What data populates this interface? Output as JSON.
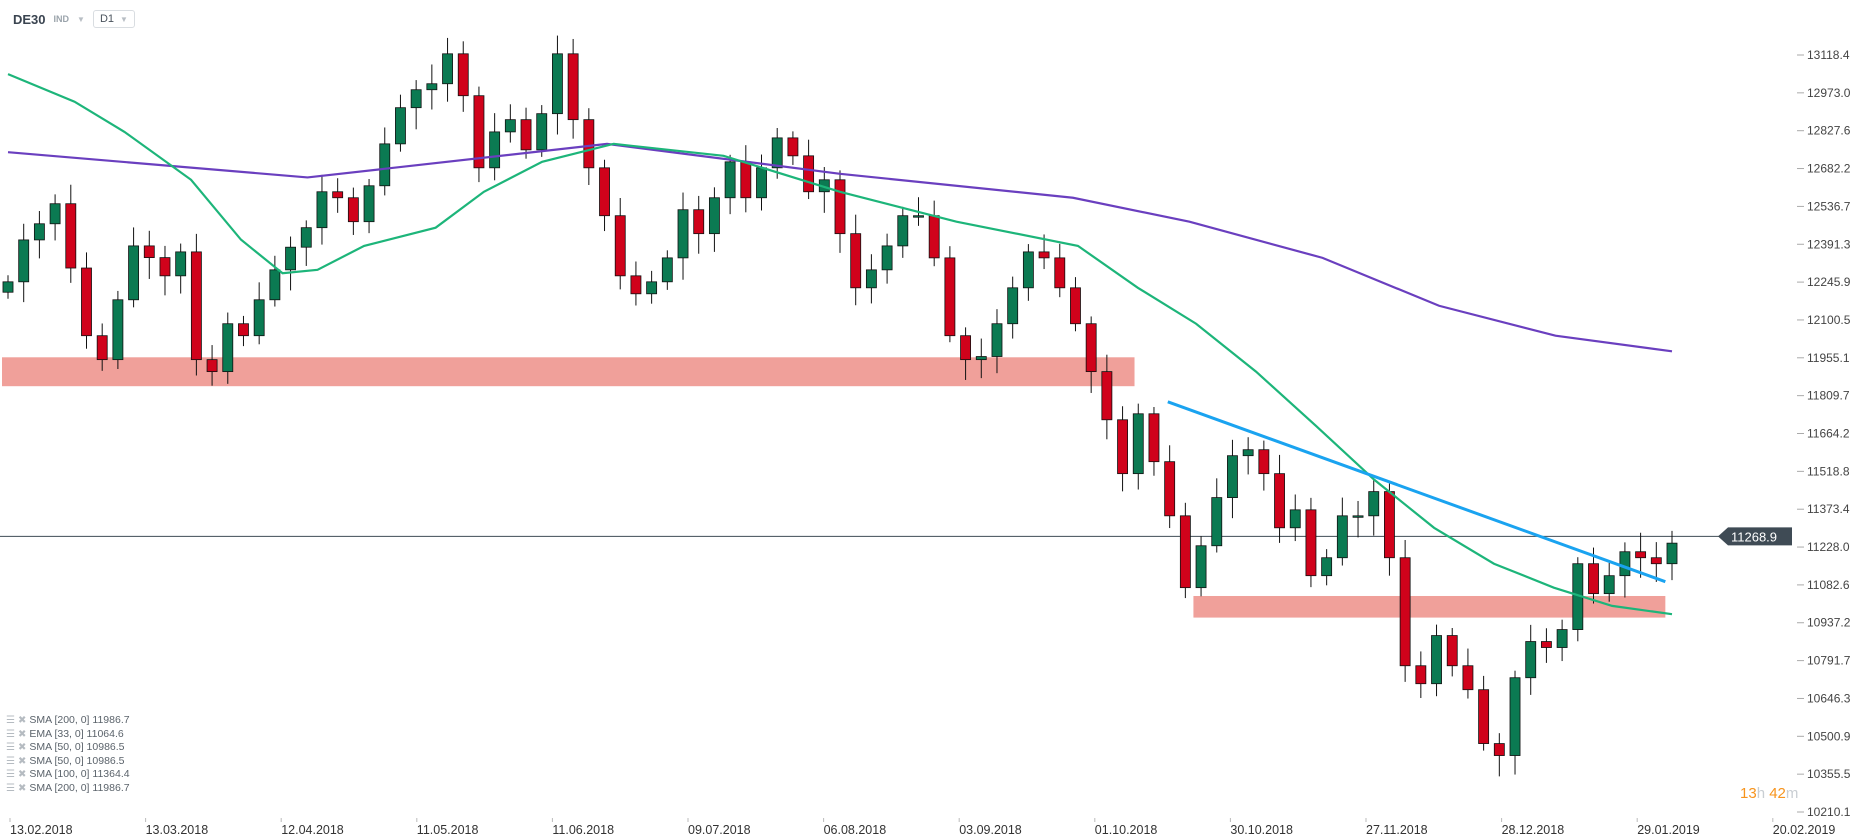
{
  "header": {
    "symbol": "DE30",
    "class": "IND",
    "timeframe": "D1"
  },
  "timer": {
    "hours": "13",
    "h": "h",
    "minutes": "42",
    "m": "m"
  },
  "legend": [
    {
      "label": "SMA [200,  0] 11986.7"
    },
    {
      "label": "EMA [33, 0] 11064.6"
    },
    {
      "label": "SMA [50, 0] 10986.5"
    },
    {
      "label": "SMA [50, 0] 10986.5"
    },
    {
      "label": "SMA [100,  0] 11364.4"
    },
    {
      "label": "SMA [200,  0] 11986.7"
    }
  ],
  "colors": {
    "up": "#0b7a52",
    "down": "#d0021b",
    "sma200": "#6a3fbf",
    "sma50": "#1db57a",
    "trend": "#1aa3f0",
    "zone": "#f0a09a",
    "last": "#3f4b55"
  },
  "chart_data": {
    "type": "candlestick",
    "title": "DE30",
    "ylim": [
      10210.1,
      13118.4
    ],
    "y_ticks": [
      "13118.4",
      "12973.0",
      "12827.6",
      "12682.2",
      "12536.7",
      "12391.3",
      "12245.9",
      "12100.5",
      "11955.1",
      "11809.7",
      "11664.2",
      "11518.8",
      "11373.4",
      "11228.0",
      "11082.6",
      "10937.2",
      "10791.7",
      "10646.3",
      "10500.9",
      "10355.5",
      "10210.1"
    ],
    "x_ticks": [
      "13.02.2018",
      "13.03.2018",
      "12.04.2018",
      "11.05.2018",
      "11.06.2018",
      "09.07.2018",
      "06.08.2018",
      "03.09.2018",
      "01.10.2018",
      "30.10.2018",
      "27.11.2018",
      "28.12.2018",
      "29.01.2019",
      "20.02.2019"
    ],
    "last_price": "11268.9",
    "closes": [
      12247,
      12408,
      12470,
      12547,
      12300,
      12040,
      11948,
      12178,
      12385,
      12340,
      12270,
      12362,
      11948,
      11902,
      12086,
      12040,
      12178,
      12293,
      12380,
      12455,
      12593,
      12570,
      12478,
      12616,
      12777,
      12916,
      12985,
      13008,
      13123,
      12962,
      12685,
      12823,
      12870,
      12754,
      12893,
      13123,
      12870,
      12685,
      12501,
      12270,
      12201,
      12247,
      12339,
      12524,
      12432,
      12570,
      12708,
      12570,
      12685,
      12800,
      12731,
      12593,
      12639,
      12432,
      12224,
      12293,
      12385,
      12501,
      12501,
      12339,
      12040,
      11948,
      11960,
      12086,
      12224,
      12362,
      12339,
      12224,
      12086,
      11902,
      11717,
      11510,
      11740,
      11556,
      11348,
      11072,
      11233,
      11418,
      11579,
      11602,
      11510,
      11302,
      11371,
      11118,
      11187,
      11348,
      11348,
      11441,
      11187,
      10772,
      10703,
      10888,
      10772,
      10680,
      10473,
      10427,
      10726,
      10865,
      10842,
      10911,
      11164,
      11049,
      11118,
      11210,
      11187,
      11164,
      11243
    ],
    "series": [
      {
        "name": "SMA 200",
        "values": [
          [
            0,
            12745
          ],
          [
            0.18,
            12648
          ],
          [
            0.36,
            12777
          ],
          [
            0.5,
            12662
          ],
          [
            0.64,
            12570
          ],
          [
            0.71,
            12478
          ],
          [
            0.79,
            12339
          ],
          [
            0.86,
            12155
          ],
          [
            0.93,
            12040
          ],
          [
            1,
            11980
          ]
        ]
      },
      {
        "name": "SMA 50",
        "values": [
          [
            0,
            13045
          ],
          [
            0.04,
            12939
          ],
          [
            0.07,
            12823
          ],
          [
            0.11,
            12639
          ],
          [
            0.14,
            12409
          ],
          [
            0.165,
            12280
          ],
          [
            0.186,
            12293
          ],
          [
            0.214,
            12385
          ],
          [
            0.257,
            12455
          ],
          [
            0.286,
            12593
          ],
          [
            0.321,
            12708
          ],
          [
            0.364,
            12777
          ],
          [
            0.43,
            12731
          ],
          [
            0.5,
            12593
          ],
          [
            0.57,
            12478
          ],
          [
            0.643,
            12385
          ],
          [
            0.679,
            12224
          ],
          [
            0.714,
            12086
          ],
          [
            0.75,
            11902
          ],
          [
            0.786,
            11694
          ],
          [
            0.821,
            11487
          ],
          [
            0.857,
            11302
          ],
          [
            0.893,
            11164
          ],
          [
            0.929,
            11072
          ],
          [
            0.964,
            11002
          ],
          [
            1,
            10970
          ]
        ]
      },
      {
        "name": "Trendline",
        "values": [
          [
            0.697,
            11786
          ],
          [
            0.996,
            11095
          ]
        ]
      }
    ],
    "zones": [
      {
        "from": 11846,
        "to": 11957,
        "start": 0,
        "end": 0.677
      },
      {
        "from": 10957,
        "to": 11040,
        "start": 0.716,
        "end": 0.996
      }
    ]
  }
}
